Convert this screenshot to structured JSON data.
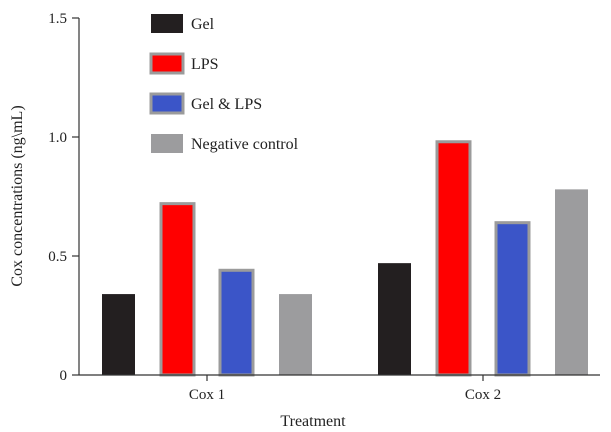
{
  "chart_data": {
    "type": "bar",
    "title": "",
    "xlabel": "Treatment",
    "ylabel": "Cox concentrations (ng\\mL)",
    "categories": [
      "Cox 1",
      "Cox 2"
    ],
    "ylim": [
      0,
      1.5
    ],
    "yticks": [
      0,
      0.5,
      1.0,
      1.5
    ],
    "ytick_labels": [
      "0",
      "0.5",
      "1.0",
      "1.5"
    ],
    "grid": false,
    "legend_position": "top-left",
    "series": [
      {
        "name": "Gel",
        "values": [
          0.34,
          0.47
        ],
        "color": "#231f20",
        "outline": ""
      },
      {
        "name": "LPS",
        "values": [
          0.72,
          0.98
        ],
        "color": "#ff0000",
        "outline": "#9b9b9b"
      },
      {
        "name": "Gel & LPS",
        "values": [
          0.44,
          0.64
        ],
        "color": "#3b55c8",
        "outline": "#9b9b9b"
      },
      {
        "name": "Negative control",
        "values": [
          0.34,
          0.78
        ],
        "color": "#9c9c9e",
        "outline": ""
      }
    ]
  }
}
